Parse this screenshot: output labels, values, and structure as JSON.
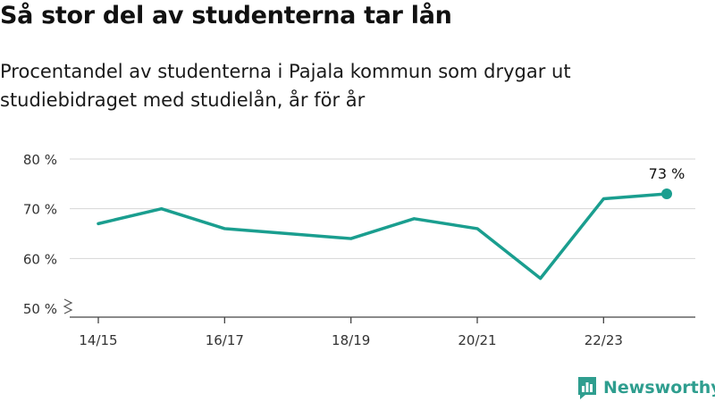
{
  "title": "Så stor del av studenterna tar lån",
  "subtitle": "Procentandel av studenterna i Pajala kommun som drygar ut studiebidraget med studielån, år för år",
  "brand": {
    "name": "Newsworthy",
    "icon": "newsworthy-logo-icon",
    "color": "#2f9e8f"
  },
  "chart_data": {
    "type": "line",
    "title": "Så stor del av studenterna tar lån",
    "subtitle": "Procentandel av studenterna i Pajala kommun som drygar ut studiebidraget med studielån, år för år",
    "xlabel": "",
    "ylabel": "",
    "x": [
      "14/15",
      "15/16",
      "16/17",
      "17/18",
      "18/19",
      "19/20",
      "20/21",
      "21/22",
      "22/23",
      "23/24"
    ],
    "x_tick_labels": [
      "14/15",
      "16/17",
      "18/19",
      "20/21",
      "22/23"
    ],
    "y_tick_labels": [
      "50 %",
      "60 %",
      "70 %",
      "80 %"
    ],
    "ylim": [
      50,
      80
    ],
    "y_axis_break": true,
    "grid": true,
    "series": [
      {
        "values": [
          67,
          70,
          66,
          65,
          64,
          68,
          66,
          56,
          72,
          73
        ],
        "color": "#1a9e8f"
      }
    ],
    "annotations": [
      {
        "x": "23/24",
        "text": "73 %"
      }
    ]
  }
}
